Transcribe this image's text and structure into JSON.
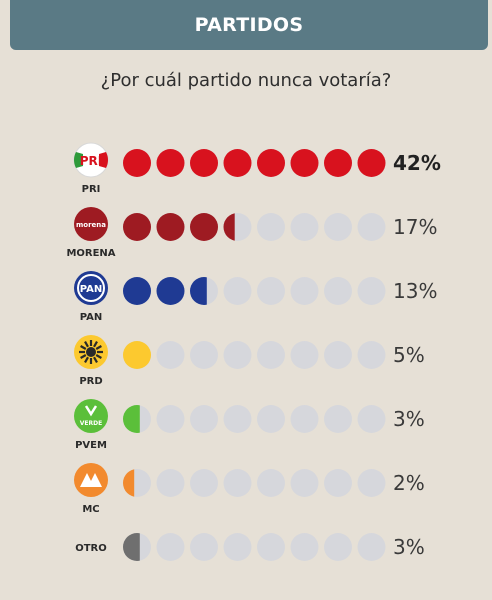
{
  "header": {
    "title": "PARTIDOS"
  },
  "chart_data": {
    "type": "bar",
    "title": "¿Por cuál partido nunca votaría?",
    "dots_per_row": 8,
    "dot_value": 5,
    "empty_dot_color": "#d6d7dc",
    "categories": [
      "PRI",
      "MORENA",
      "PAN",
      "PRD",
      "PVEM",
      "MC",
      "OTRO"
    ],
    "values": [
      42,
      17,
      13,
      5,
      3,
      2,
      3
    ],
    "value_labels": [
      "42%",
      "17%",
      "13%",
      "5%",
      "3%",
      "2%",
      "3%"
    ],
    "colors": [
      "#d8121e",
      "#9e1b22",
      "#1f3a93",
      "#fcc92f",
      "#5bbf3a",
      "#f28a2e",
      "#6f6f6f"
    ],
    "logos": [
      {
        "icon": "pri-logo-icon",
        "label": "PRI",
        "text": "PRI"
      },
      {
        "icon": "morena-logo-icon",
        "label": "MORENA",
        "text": "morena"
      },
      {
        "icon": "pan-logo-icon",
        "label": "PAN",
        "text": "PAN"
      },
      {
        "icon": "prd-logo-icon",
        "label": "PRD",
        "text": ""
      },
      {
        "icon": "pvem-logo-icon",
        "label": "PVEM",
        "text": "VERDE"
      },
      {
        "icon": "mc-logo-icon",
        "label": "MC",
        "text": ""
      },
      {
        "icon": "otro-icon",
        "label": "OTRO",
        "text": ""
      }
    ]
  }
}
